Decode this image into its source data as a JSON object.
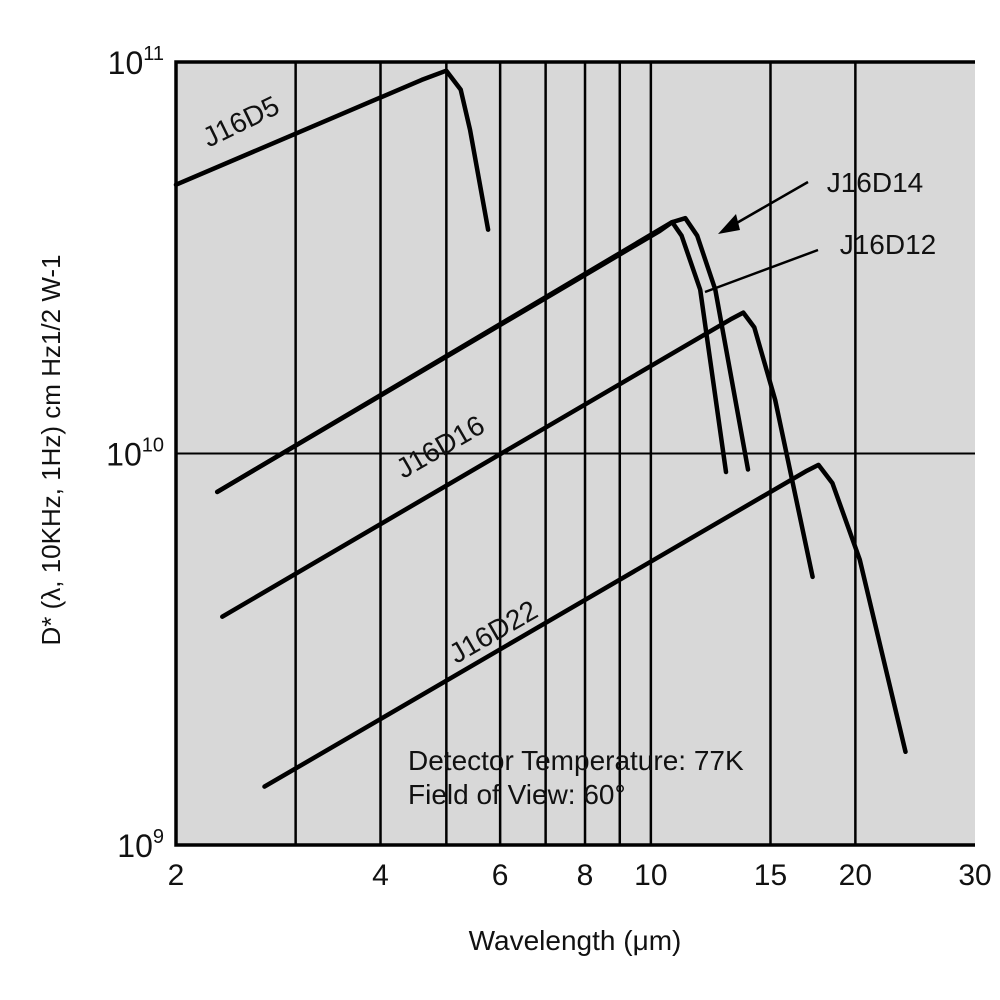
{
  "chart_data": {
    "type": "line",
    "title": "",
    "xlabel": "Wavelength (μm)",
    "ylabel": "D* (λ, 10KHz, 1Hz) cm Hz1/2 W-1",
    "x_scale": "log",
    "y_scale": "log",
    "xlim": [
      2,
      30
    ],
    "ylim": [
      1000000000.0,
      100000000000.0
    ],
    "x_ticks": [
      2,
      4,
      6,
      8,
      10,
      15,
      20,
      30
    ],
    "x_gridlines": [
      3,
      4,
      5,
      6,
      7,
      8,
      9,
      10,
      15,
      20
    ],
    "y_ticks": [
      {
        "value": 1000000000.0,
        "base": "10",
        "exp": "9"
      },
      {
        "value": 10000000000.0,
        "base": "10",
        "exp": "10"
      },
      {
        "value": 100000000000.0,
        "base": "10",
        "exp": "11"
      }
    ],
    "grid": true,
    "plot_background": "#d8d8d8",
    "line_color": "#000000",
    "series": [
      {
        "name": "J16D5",
        "x": [
          2.0,
          4.6,
          5.0,
          5.25,
          5.42,
          5.76
        ],
        "y": [
          48600000000.0,
          90000000000.0,
          95000000000.0,
          85000000000.0,
          67000000000.0,
          37300000000.0
        ]
      },
      {
        "name": "J16D12",
        "x": [
          2.3,
          10.3,
          10.75,
          11.1,
          11.82,
          12.9
        ],
        "y": [
          7980000000.0,
          37000000000.0,
          39000000000.0,
          36000000000.0,
          26200000000.0,
          8970000000.0
        ]
      },
      {
        "name": "J16D14",
        "x": [
          2.3,
          10.75,
          11.24,
          11.7,
          12.44,
          13.9
        ],
        "y": [
          7980000000.0,
          39000000000.0,
          39900000000.0,
          36000000000.0,
          26200000000.0,
          9100000000.0
        ]
      },
      {
        "name": "J16D16",
        "x": [
          2.34,
          13.1,
          13.68,
          14.2,
          15.24,
          17.3
        ],
        "y": [
          3830000000.0,
          22000000000.0,
          22900000000.0,
          21000000000.0,
          13700000000.0,
          4840000000.0
        ]
      },
      {
        "name": "J16D22",
        "x": [
          2.7,
          16.9,
          17.65,
          18.5,
          20.3,
          23.7
        ],
        "y": [
          1410000000.0,
          9000000000.0,
          9350000000.0,
          8400000000.0,
          5350000000.0,
          1730000000.0
        ]
      }
    ],
    "annotations": [
      "Detector Temperature: 77K",
      "Field of View: 60°"
    ]
  }
}
